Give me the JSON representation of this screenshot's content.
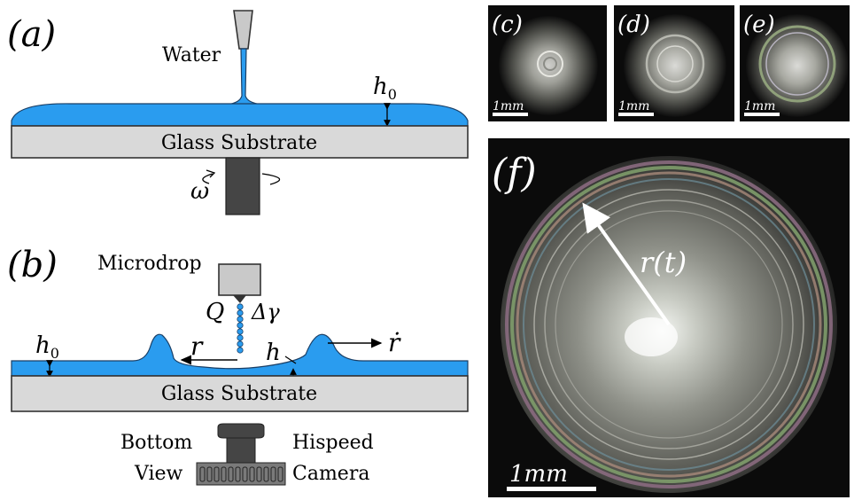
{
  "panel_a": {
    "label": "(a)",
    "water_label": "Water",
    "substrate_label": "Glass Substrate",
    "h0_label": "h",
    "h0_sub": "0",
    "omega_label": "ω"
  },
  "panel_b": {
    "label": "(b)",
    "microdrop_label": "Microdrop",
    "q_label": "Q",
    "dgamma_label": "Δγ",
    "h0_label": "h",
    "h0_sub": "0",
    "r_label": "r",
    "h_label": "h",
    "rdot_label": "ṙ",
    "substrate_label": "Glass Substrate",
    "bottom_label": "Bottom",
    "view_label": "View",
    "hispeed_label": "Hispeed",
    "camera_label": "Camera"
  },
  "photos": {
    "c_label": "(c)",
    "d_label": "(d)",
    "e_label": "(e)",
    "f_label": "(f)",
    "scale_small": "1mm",
    "scale_large": "1mm",
    "radius_label": "r(t)"
  },
  "colors": {
    "film_blue": "#2a9cef",
    "substrate_gray": "#d9d9d9",
    "dark_gray": "#454545",
    "photo_bg": "#0b0b0b"
  }
}
